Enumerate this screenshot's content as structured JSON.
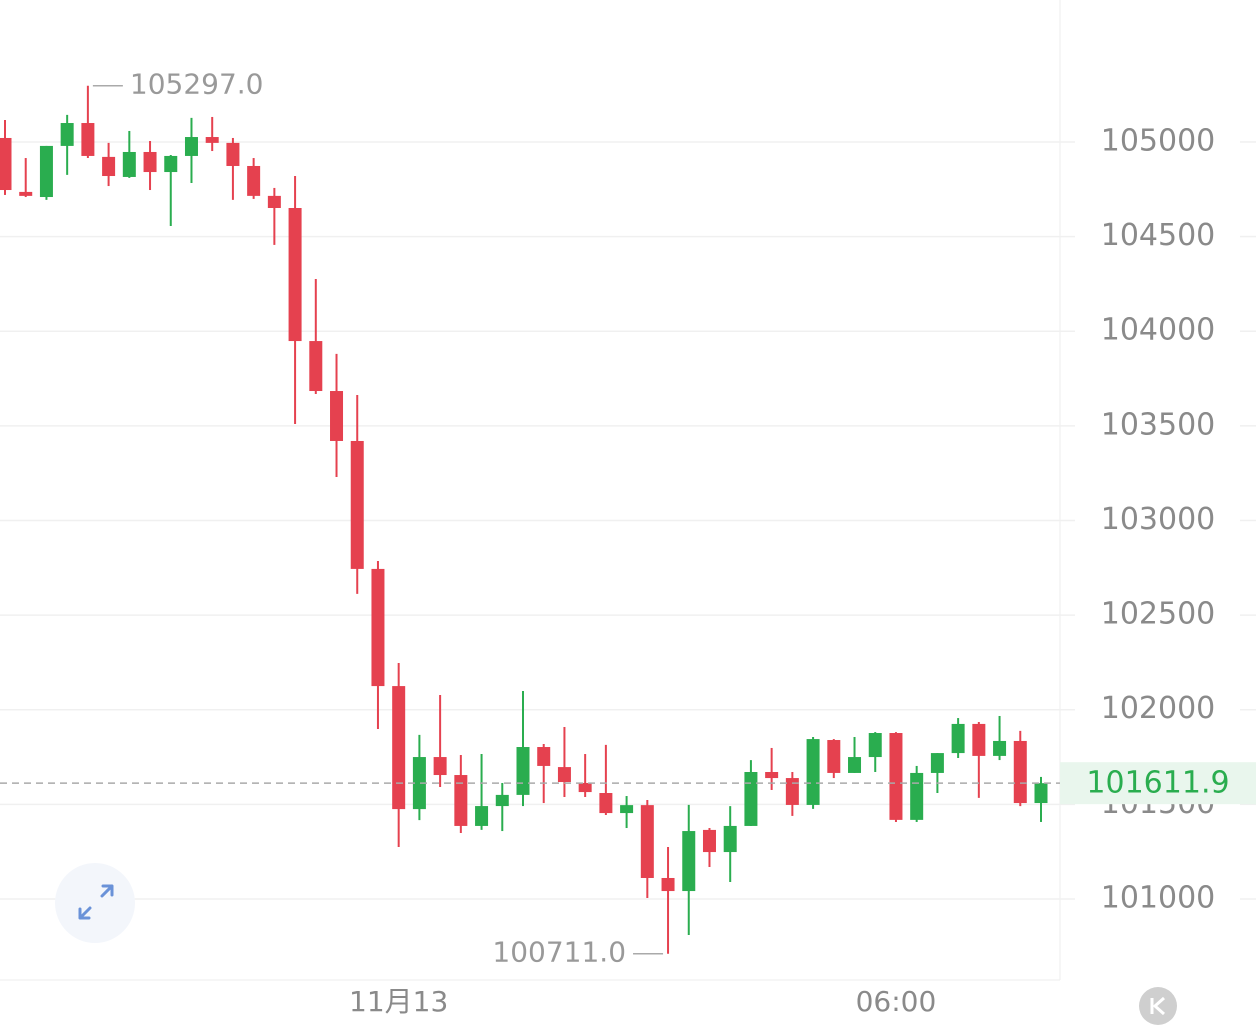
{
  "chart_data": {
    "type": "candlestick",
    "categories": [
      null,
      null,
      null,
      null,
      null,
      null,
      null,
      null,
      null,
      null,
      null,
      null,
      null,
      null,
      null,
      null,
      null,
      null,
      null,
      "11月13",
      null,
      null,
      null,
      null,
      null,
      null,
      null,
      null,
      null,
      null,
      null,
      null,
      null,
      null,
      null,
      null,
      null,
      null,
      null,
      null,
      null,
      null,
      null,
      "06:00",
      null,
      null,
      null,
      null,
      null,
      null,
      null
    ],
    "open": [
      105021,
      104736,
      104709,
      104979,
      105100,
      104921,
      104815,
      104947,
      104841,
      104926,
      105026,
      104995,
      104873,
      104715,
      104651,
      103948,
      103684,
      103420,
      102744,
      102125,
      101475,
      101750,
      101655,
      101386,
      101491,
      101550,
      101803,
      101697,
      101613,
      101560,
      101454,
      101496,
      101111,
      101042,
      101365,
      101248,
      101386,
      101671,
      101639,
      101497,
      101840,
      101666,
      101750,
      101877,
      101418,
      101666,
      101771,
      101925,
      101756,
      101835,
      101507
    ],
    "high": [
      105116,
      104915,
      104979,
      105143,
      105297,
      104995,
      105058,
      105005,
      104931,
      105127,
      105132,
      105021,
      104915,
      104757,
      104820,
      104276,
      103880,
      103663,
      102786,
      102247,
      101867,
      102078,
      101761,
      101766,
      101613,
      102099,
      101819,
      101909,
      101766,
      101814,
      101544,
      101523,
      101275,
      101497,
      101375,
      101491,
      101734,
      101798,
      101671,
      101856,
      101845,
      101856,
      101882,
      101882,
      101703,
      101771,
      101956,
      101935,
      101967,
      101888,
      101645
    ],
    "low": [
      104720,
      104709,
      104694,
      104826,
      104915,
      104767,
      104810,
      104746,
      104556,
      104783,
      104952,
      104694,
      104699,
      104456,
      103510,
      103668,
      103230,
      102612,
      101898,
      101275,
      101417,
      101592,
      101349,
      101365,
      101359,
      101491,
      101507,
      101539,
      101539,
      101444,
      101375,
      101005,
      100711,
      100810,
      101169,
      101090,
      101386,
      101576,
      101439,
      101476,
      101639,
      101666,
      101671,
      101407,
      101407,
      101560,
      101745,
      101534,
      101734,
      101491,
      101407
    ],
    "close": [
      104746,
      104715,
      104979,
      105100,
      104926,
      104820,
      104947,
      104841,
      104926,
      105026,
      104995,
      104873,
      104715,
      104651,
      103948,
      103684,
      103420,
      102744,
      102125,
      101475,
      101750,
      101655,
      101386,
      101491,
      101550,
      101803,
      101703,
      101618,
      101565,
      101454,
      101496,
      101111,
      101042,
      101359,
      101248,
      101386,
      101671,
      101639,
      101497,
      101845,
      101666,
      101750,
      101877,
      101418,
      101666,
      101771,
      101925,
      101756,
      101835,
      101507,
      101612
    ],
    "up_color": "#2aad4f",
    "down_color": "#e5414f",
    "ylim": [
      100572,
      105750
    ],
    "yticks": [
      101000,
      101500,
      102000,
      102500,
      103000,
      103500,
      104000,
      104500,
      105000
    ],
    "grid": true,
    "high_label": {
      "index": 4,
      "value": 105297,
      "label": "105297.0"
    },
    "low_label": {
      "index": 32,
      "value": 100711,
      "label": "100711.0"
    },
    "last_price": 101611.9
  }
}
